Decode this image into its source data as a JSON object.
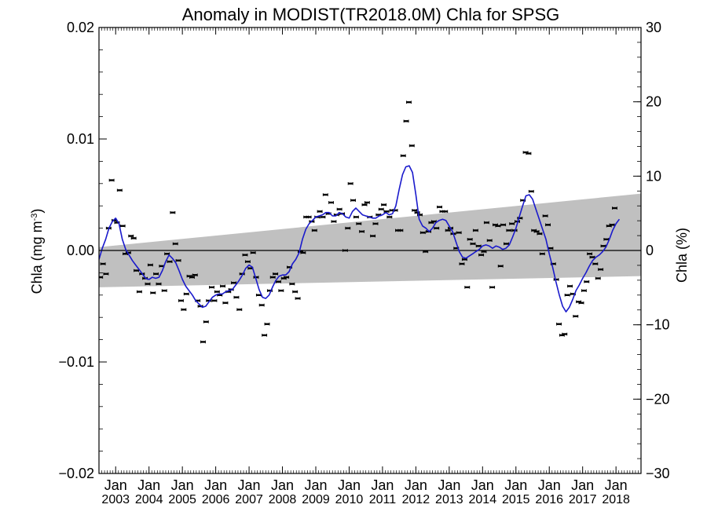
{
  "chart_data": {
    "type": "scatter",
    "title": "Anomaly in MODIST(TR2018.0M) Chla for SPSG",
    "ylabel_left": {
      "main": "Chla (mg m",
      "sup": "-3",
      "close": ")"
    },
    "ylabel_right": "Chla (%)",
    "ylim": [
      -0.02,
      0.02
    ],
    "ylim_right": [
      -30,
      30
    ],
    "xlim": [
      2002.5,
      2018.75
    ],
    "yticks": [
      {
        "value": -0.02,
        "label": "−0.02"
      },
      {
        "value": -0.01,
        "label": "−0.01"
      },
      {
        "value": 0.0,
        "label": "0.00"
      },
      {
        "value": 0.01,
        "label": "0.01"
      },
      {
        "value": 0.02,
        "label": "0.02"
      }
    ],
    "yticks_right": [
      {
        "value": -30,
        "label": "−30"
      },
      {
        "value": -20,
        "label": "−20"
      },
      {
        "value": -10,
        "label": "−10"
      },
      {
        "value": 0,
        "label": "0"
      },
      {
        "value": 10,
        "label": "10"
      },
      {
        "value": 20,
        "label": "20"
      },
      {
        "value": 30,
        "label": "30"
      }
    ],
    "xticks": [
      {
        "value": 2003,
        "month": "Jan",
        "year": "2003"
      },
      {
        "value": 2004,
        "month": "Jan",
        "year": "2004"
      },
      {
        "value": 2005,
        "month": "Jan",
        "year": "2005"
      },
      {
        "value": 2006,
        "month": "Jan",
        "year": "2006"
      },
      {
        "value": 2007,
        "month": "Jan",
        "year": "2007"
      },
      {
        "value": 2008,
        "month": "Jan",
        "year": "2008"
      },
      {
        "value": 2009,
        "month": "Jan",
        "year": "2009"
      },
      {
        "value": 2010,
        "month": "Jan",
        "year": "2010"
      },
      {
        "value": 2011,
        "month": "Jan",
        "year": "2011"
      },
      {
        "value": 2012,
        "month": "Jan",
        "year": "2012"
      },
      {
        "value": 2013,
        "month": "Jan",
        "year": "2013"
      },
      {
        "value": 2014,
        "month": "Jan",
        "year": "2014"
      },
      {
        "value": 2015,
        "month": "Jan",
        "year": "2015"
      },
      {
        "value": 2016,
        "month": "Jan",
        "year": "2016"
      },
      {
        "value": 2017,
        "month": "Jan",
        "year": "2017"
      },
      {
        "value": 2018,
        "month": "Jan",
        "year": "2018"
      }
    ],
    "trend_band": {
      "upper": [
        [
          2002.5,
          0.0003
        ],
        [
          2018.75,
          0.0051
        ]
      ],
      "lower": [
        [
          2002.5,
          -0.0033
        ],
        [
          2018.75,
          -0.0023
        ]
      ],
      "color": "#c0c0c0"
    },
    "zero_line": 0,
    "colors": {
      "smooth": "#1a1acc",
      "points": "#000000",
      "band": "#c0c0c0"
    },
    "monthly_points": [
      [
        2002.54,
        -0.0024
      ],
      [
        2002.62,
        -0.0012
      ],
      [
        2002.71,
        -0.0021
      ],
      [
        2002.79,
        0.002
      ],
      [
        2002.88,
        0.0063
      ],
      [
        2002.96,
        0.0027
      ],
      [
        2003.04,
        0.0025
      ],
      [
        2003.12,
        0.0054
      ],
      [
        2003.21,
        0.0022
      ],
      [
        2003.29,
        -0.0003
      ],
      [
        2003.38,
        -0.0002
      ],
      [
        2003.46,
        0.0013
      ],
      [
        2003.54,
        0.0011
      ],
      [
        2003.62,
        -0.0018
      ],
      [
        2003.71,
        -0.0037
      ],
      [
        2003.79,
        -0.0021
      ],
      [
        2003.88,
        -0.0025
      ],
      [
        2003.96,
        -0.003
      ],
      [
        2004.04,
        -0.0013
      ],
      [
        2004.12,
        -0.0038
      ],
      [
        2004.21,
        -0.0021
      ],
      [
        2004.29,
        -0.003
      ],
      [
        2004.38,
        -0.0014
      ],
      [
        2004.46,
        -0.0036
      ],
      [
        2004.54,
        -0.0003
      ],
      [
        2004.62,
        -0.001
      ],
      [
        2004.71,
        0.0034
      ],
      [
        2004.79,
        0.0006
      ],
      [
        2004.88,
        -0.0009
      ],
      [
        2004.96,
        -0.0045
      ],
      [
        2005.04,
        -0.0053
      ],
      [
        2005.12,
        -0.0039
      ],
      [
        2005.21,
        -0.0023
      ],
      [
        2005.29,
        -0.0024
      ],
      [
        2005.38,
        -0.0022
      ],
      [
        2005.46,
        -0.0045
      ],
      [
        2005.54,
        -0.005
      ],
      [
        2005.62,
        -0.0082
      ],
      [
        2005.71,
        -0.0064
      ],
      [
        2005.79,
        -0.0045
      ],
      [
        2005.88,
        -0.0033
      ],
      [
        2005.96,
        -0.0045
      ],
      [
        2006.04,
        -0.0037
      ],
      [
        2006.12,
        -0.004
      ],
      [
        2006.21,
        -0.0032
      ],
      [
        2006.29,
        -0.0047
      ],
      [
        2006.38,
        -0.0037
      ],
      [
        2006.46,
        -0.0035
      ],
      [
        2006.54,
        -0.0029
      ],
      [
        2006.62,
        -0.0042
      ],
      [
        2006.71,
        -0.0053
      ],
      [
        2006.79,
        -0.0021
      ],
      [
        2006.88,
        -0.0004
      ],
      [
        2006.96,
        -0.001
      ],
      [
        2007.04,
        -0.0016
      ],
      [
        2007.12,
        -0.0002
      ],
      [
        2007.21,
        -0.0024
      ],
      [
        2007.29,
        -0.004
      ],
      [
        2007.38,
        -0.0049
      ],
      [
        2007.46,
        -0.0076
      ],
      [
        2007.54,
        -0.0066
      ],
      [
        2007.62,
        -0.0036
      ],
      [
        2007.71,
        -0.0024
      ],
      [
        2007.79,
        -0.0021
      ],
      [
        2007.88,
        -0.0028
      ],
      [
        2007.96,
        -0.0036
      ],
      [
        2008.04,
        -0.0025
      ],
      [
        2008.12,
        -0.0024
      ],
      [
        2008.21,
        -0.0015
      ],
      [
        2008.29,
        -0.003
      ],
      [
        2008.38,
        -0.0037
      ],
      [
        2008.46,
        -0.0043
      ],
      [
        2008.54,
        -0.0001
      ],
      [
        2008.62,
        -0.0002
      ],
      [
        2008.71,
        0.003
      ],
      [
        2008.79,
        0.003
      ],
      [
        2008.88,
        0.0026
      ],
      [
        2008.96,
        0.0018
      ],
      [
        2009.04,
        0.003
      ],
      [
        2009.12,
        0.0035
      ],
      [
        2009.21,
        0.003
      ],
      [
        2009.29,
        0.005
      ],
      [
        2009.38,
        0.0033
      ],
      [
        2009.46,
        0.0043
      ],
      [
        2009.54,
        0.0026
      ],
      [
        2009.62,
        0.0032
      ],
      [
        2009.71,
        0.0037
      ],
      [
        2009.79,
        0.0033
      ],
      [
        2009.88,
        0.0
      ],
      [
        2009.96,
        0.002
      ],
      [
        2010.04,
        0.006
      ],
      [
        2010.12,
        0.0045
      ],
      [
        2010.21,
        0.003
      ],
      [
        2010.29,
        0.0024
      ],
      [
        2010.38,
        0.0017
      ],
      [
        2010.46,
        0.0041
      ],
      [
        2010.54,
        0.0043
      ],
      [
        2010.62,
        0.003
      ],
      [
        2010.71,
        0.0013
      ],
      [
        2010.79,
        0.0024
      ],
      [
        2010.88,
        0.0032
      ],
      [
        2010.96,
        0.0037
      ],
      [
        2011.04,
        0.0041
      ],
      [
        2011.12,
        0.0035
      ],
      [
        2011.21,
        0.003
      ],
      [
        2011.29,
        0.0036
      ],
      [
        2011.38,
        0.0036
      ],
      [
        2011.46,
        0.0018
      ],
      [
        2011.54,
        0.0018
      ],
      [
        2011.62,
        0.0085
      ],
      [
        2011.71,
        0.0116
      ],
      [
        2011.79,
        0.0133
      ],
      [
        2011.88,
        0.0094
      ],
      [
        2011.96,
        0.0036
      ],
      [
        2012.04,
        0.0034
      ],
      [
        2012.12,
        0.0032
      ],
      [
        2012.21,
        0.0016
      ],
      [
        2012.29,
        -0.0001
      ],
      [
        2012.38,
        0.0017
      ],
      [
        2012.46,
        0.0025
      ],
      [
        2012.54,
        0.0026
      ],
      [
        2012.62,
        0.002
      ],
      [
        2012.71,
        0.0039
      ],
      [
        2012.79,
        0.0035
      ],
      [
        2012.88,
        0.0035
      ],
      [
        2012.96,
        0.0018
      ],
      [
        2013.04,
        0.002
      ],
      [
        2013.12,
        0.0015
      ],
      [
        2013.21,
        0.0002
      ],
      [
        2013.29,
        0.0016
      ],
      [
        2013.38,
        -0.0012
      ],
      [
        2013.46,
        -0.0008
      ],
      [
        2013.54,
        -0.0033
      ],
      [
        2013.62,
        0.001
      ],
      [
        2013.71,
        0.0006
      ],
      [
        2013.79,
        0.0018
      ],
      [
        2013.88,
        0.0004
      ],
      [
        2013.96,
        -0.0004
      ],
      [
        2014.04,
        -0.0001
      ],
      [
        2014.12,
        0.0025
      ],
      [
        2014.21,
        0.0009
      ],
      [
        2014.29,
        -0.0033
      ],
      [
        2014.38,
        0.0023
      ],
      [
        2014.46,
        0.0022
      ],
      [
        2014.54,
        -0.0014
      ],
      [
        2014.62,
        0.0023
      ],
      [
        2014.71,
        0.0006
      ],
      [
        2014.79,
        0.0018
      ],
      [
        2014.88,
        0.0024
      ],
      [
        2014.96,
        0.0018
      ],
      [
        2015.04,
        0.0026
      ],
      [
        2015.12,
        0.0029
      ],
      [
        2015.21,
        0.0045
      ],
      [
        2015.29,
        0.0088
      ],
      [
        2015.38,
        0.0087
      ],
      [
        2015.46,
        0.0053
      ],
      [
        2015.54,
        0.0018
      ],
      [
        2015.62,
        0.0017
      ],
      [
        2015.71,
        0.0015
      ],
      [
        2015.79,
        -0.0003
      ],
      [
        2015.88,
        0.0031
      ],
      [
        2015.96,
        0.0023
      ],
      [
        2016.04,
        0.0002
      ],
      [
        2016.12,
        -0.0012
      ],
      [
        2016.21,
        -0.0026
      ],
      [
        2016.29,
        -0.0066
      ],
      [
        2016.38,
        -0.0076
      ],
      [
        2016.46,
        -0.0075
      ],
      [
        2016.54,
        -0.004
      ],
      [
        2016.62,
        -0.0032
      ],
      [
        2016.71,
        -0.0039
      ],
      [
        2016.79,
        -0.0059
      ],
      [
        2016.88,
        -0.0046
      ],
      [
        2016.96,
        -0.0047
      ],
      [
        2017.04,
        -0.0036
      ],
      [
        2017.12,
        -0.0028
      ],
      [
        2017.21,
        -0.0003
      ],
      [
        2017.29,
        -0.0006
      ],
      [
        2017.38,
        -0.0012
      ],
      [
        2017.46,
        -0.0025
      ],
      [
        2017.54,
        -0.0017
      ],
      [
        2017.62,
        0.0004
      ],
      [
        2017.71,
        0.001
      ],
      [
        2017.79,
        0.0022
      ],
      [
        2017.88,
        0.0023
      ],
      [
        2017.96,
        0.0038
      ]
    ],
    "smoothed_series": [
      [
        2002.5,
        -0.0008
      ],
      [
        2002.6,
        0.0002
      ],
      [
        2002.7,
        0.001
      ],
      [
        2002.8,
        0.002
      ],
      [
        2002.9,
        0.0026
      ],
      [
        2003.0,
        0.0029
      ],
      [
        2003.1,
        0.0024
      ],
      [
        2003.2,
        0.001
      ],
      [
        2003.3,
        0.0001
      ],
      [
        2003.4,
        -0.0004
      ],
      [
        2003.5,
        -0.0009
      ],
      [
        2003.6,
        -0.0013
      ],
      [
        2003.7,
        -0.0017
      ],
      [
        2003.8,
        -0.0021
      ],
      [
        2003.9,
        -0.0025
      ],
      [
        2004.0,
        -0.0026
      ],
      [
        2004.1,
        -0.0024
      ],
      [
        2004.2,
        -0.0025
      ],
      [
        2004.3,
        -0.0024
      ],
      [
        2004.4,
        -0.0018
      ],
      [
        2004.5,
        -0.001
      ],
      [
        2004.6,
        -0.0004
      ],
      [
        2004.7,
        -0.0007
      ],
      [
        2004.8,
        -0.0011
      ],
      [
        2004.9,
        -0.0018
      ],
      [
        2005.0,
        -0.0026
      ],
      [
        2005.1,
        -0.0032
      ],
      [
        2005.2,
        -0.0036
      ],
      [
        2005.3,
        -0.004
      ],
      [
        2005.4,
        -0.0045
      ],
      [
        2005.5,
        -0.0048
      ],
      [
        2005.6,
        -0.0051
      ],
      [
        2005.7,
        -0.005
      ],
      [
        2005.8,
        -0.0046
      ],
      [
        2005.9,
        -0.0042
      ],
      [
        2006.0,
        -0.004
      ],
      [
        2006.1,
        -0.0039
      ],
      [
        2006.2,
        -0.0039
      ],
      [
        2006.3,
        -0.0037
      ],
      [
        2006.4,
        -0.0036
      ],
      [
        2006.5,
        -0.0035
      ],
      [
        2006.6,
        -0.0031
      ],
      [
        2006.7,
        -0.0027
      ],
      [
        2006.8,
        -0.0022
      ],
      [
        2006.9,
        -0.0016
      ],
      [
        2007.0,
        -0.0013
      ],
      [
        2007.1,
        -0.0015
      ],
      [
        2007.2,
        -0.0025
      ],
      [
        2007.3,
        -0.0035
      ],
      [
        2007.4,
        -0.0042
      ],
      [
        2007.5,
        -0.0043
      ],
      [
        2007.6,
        -0.004
      ],
      [
        2007.7,
        -0.0033
      ],
      [
        2007.8,
        -0.0027
      ],
      [
        2007.9,
        -0.0023
      ],
      [
        2008.0,
        -0.0022
      ],
      [
        2008.1,
        -0.0022
      ],
      [
        2008.2,
        -0.0019
      ],
      [
        2008.3,
        -0.0012
      ],
      [
        2008.4,
        -0.0008
      ],
      [
        2008.5,
        -0.0002
      ],
      [
        2008.6,
        0.001
      ],
      [
        2008.7,
        0.0019
      ],
      [
        2008.8,
        0.0024
      ],
      [
        2008.9,
        0.0027
      ],
      [
        2009.0,
        0.003
      ],
      [
        2009.1,
        0.0031
      ],
      [
        2009.2,
        0.0032
      ],
      [
        2009.3,
        0.0034
      ],
      [
        2009.4,
        0.0034
      ],
      [
        2009.5,
        0.0031
      ],
      [
        2009.6,
        0.0031
      ],
      [
        2009.7,
        0.0034
      ],
      [
        2009.8,
        0.0033
      ],
      [
        2009.9,
        0.003
      ],
      [
        2010.0,
        0.0029
      ],
      [
        2010.1,
        0.0035
      ],
      [
        2010.2,
        0.0038
      ],
      [
        2010.3,
        0.0035
      ],
      [
        2010.4,
        0.0032
      ],
      [
        2010.5,
        0.0031
      ],
      [
        2010.6,
        0.003
      ],
      [
        2010.7,
        0.0029
      ],
      [
        2010.8,
        0.0029
      ],
      [
        2010.9,
        0.0031
      ],
      [
        2011.0,
        0.0032
      ],
      [
        2011.1,
        0.0034
      ],
      [
        2011.2,
        0.0032
      ],
      [
        2011.3,
        0.0033
      ],
      [
        2011.4,
        0.004
      ],
      [
        2011.5,
        0.0055
      ],
      [
        2011.6,
        0.0068
      ],
      [
        2011.7,
        0.0075
      ],
      [
        2011.8,
        0.0076
      ],
      [
        2011.9,
        0.007
      ],
      [
        2012.0,
        0.005
      ],
      [
        2012.1,
        0.0028
      ],
      [
        2012.2,
        0.0022
      ],
      [
        2012.3,
        0.002
      ],
      [
        2012.4,
        0.0017
      ],
      [
        2012.5,
        0.002
      ],
      [
        2012.6,
        0.0025
      ],
      [
        2012.7,
        0.0027
      ],
      [
        2012.8,
        0.0028
      ],
      [
        2012.9,
        0.0027
      ],
      [
        2013.0,
        0.0022
      ],
      [
        2013.1,
        0.0017
      ],
      [
        2013.2,
        0.0008
      ],
      [
        2013.3,
        -0.0001
      ],
      [
        2013.4,
        -0.0006
      ],
      [
        2013.5,
        -0.0007
      ],
      [
        2013.6,
        -0.0005
      ],
      [
        2013.7,
        -0.0003
      ],
      [
        2013.8,
        -0.0001
      ],
      [
        2013.9,
        0.0001
      ],
      [
        2014.0,
        0.0004
      ],
      [
        2014.1,
        0.0005
      ],
      [
        2014.2,
        0.0004
      ],
      [
        2014.3,
        0.0002
      ],
      [
        2014.4,
        0.0004
      ],
      [
        2014.5,
        0.0003
      ],
      [
        2014.6,
        0.0001
      ],
      [
        2014.7,
        0.0002
      ],
      [
        2014.8,
        0.0005
      ],
      [
        2014.9,
        0.0012
      ],
      [
        2015.0,
        0.002
      ],
      [
        2015.1,
        0.003
      ],
      [
        2015.2,
        0.004
      ],
      [
        2015.3,
        0.0049
      ],
      [
        2015.4,
        0.005
      ],
      [
        2015.5,
        0.0046
      ],
      [
        2015.6,
        0.0037
      ],
      [
        2015.7,
        0.0028
      ],
      [
        2015.8,
        0.0019
      ],
      [
        2015.9,
        0.001
      ],
      [
        2016.0,
        -0.0003
      ],
      [
        2016.1,
        -0.0015
      ],
      [
        2016.2,
        -0.0028
      ],
      [
        2016.3,
        -0.004
      ],
      [
        2016.4,
        -0.005
      ],
      [
        2016.5,
        -0.0055
      ],
      [
        2016.6,
        -0.0051
      ],
      [
        2016.7,
        -0.0044
      ],
      [
        2016.8,
        -0.0036
      ],
      [
        2016.9,
        -0.0031
      ],
      [
        2017.0,
        -0.0025
      ],
      [
        2017.1,
        -0.002
      ],
      [
        2017.2,
        -0.0014
      ],
      [
        2017.3,
        -0.0009
      ],
      [
        2017.4,
        -0.0006
      ],
      [
        2017.5,
        -0.0004
      ],
      [
        2017.6,
        -0.0001
      ],
      [
        2017.7,
        0.0003
      ],
      [
        2017.8,
        0.001
      ],
      [
        2017.9,
        0.0018
      ],
      [
        2018.0,
        0.0024
      ],
      [
        2018.1,
        0.0028
      ]
    ]
  }
}
